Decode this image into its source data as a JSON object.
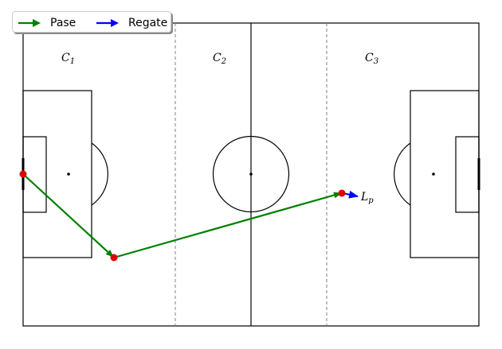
{
  "legend": {
    "items": [
      {
        "label": "Pase",
        "color": "#008000"
      },
      {
        "label": "Regate",
        "color": "#0000ff"
      }
    ]
  },
  "zones": [
    {
      "base": "C",
      "sub": "1"
    },
    {
      "base": "C",
      "sub": "2"
    },
    {
      "base": "C",
      "sub": "3"
    }
  ],
  "point_label": {
    "base": "L",
    "sub": "p"
  },
  "colors": {
    "pass": "#008000",
    "dribble": "#0000ff",
    "event_point": "#e00000",
    "lines": "#000000",
    "zone_divider": "#808080"
  }
}
